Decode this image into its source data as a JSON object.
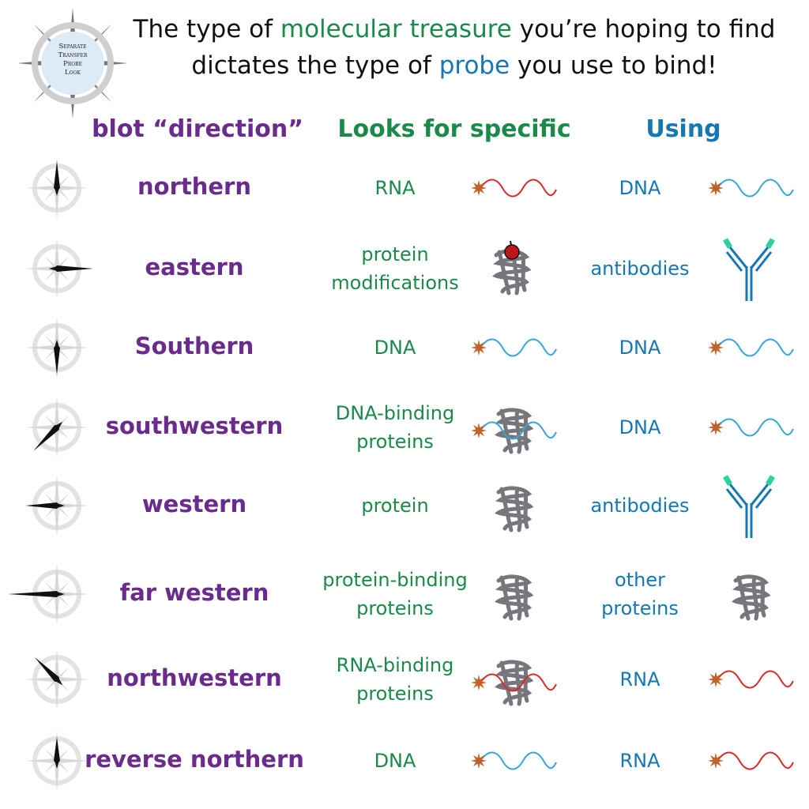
{
  "logo": {
    "lines": [
      "Separate",
      "Transfer",
      "Probe",
      "Look"
    ]
  },
  "title": {
    "line1_a": "The type of ",
    "line1_b": "molecular treasure",
    "line1_c": " you’re hoping to find",
    "line2_a": "dictates the type of ",
    "line2_b": "probe",
    "line2_c": " you use to bind!"
  },
  "headers": {
    "direction": "blot “direction”",
    "target": "Looks for specific",
    "probe": "Using"
  },
  "rows": [
    {
      "blot": "northern",
      "target": [
        "RNA"
      ],
      "probe": [
        "DNA"
      ]
    },
    {
      "blot": "eastern",
      "target": [
        "protein",
        "modifications"
      ],
      "probe": [
        "antibodies"
      ]
    },
    {
      "blot": "Southern",
      "target": [
        "DNA"
      ],
      "probe": [
        "DNA"
      ]
    },
    {
      "blot": "southwestern",
      "target": [
        "DNA-binding",
        "proteins"
      ],
      "probe": [
        "DNA"
      ]
    },
    {
      "blot": "western",
      "target": [
        "protein"
      ],
      "probe": [
        "antibodies"
      ]
    },
    {
      "blot": "far western",
      "target": [
        "protein-binding",
        "proteins"
      ],
      "probe": [
        "other",
        "proteins"
      ]
    },
    {
      "blot": "northwestern",
      "target": [
        "RNA-binding",
        "proteins"
      ],
      "probe": [
        "RNA"
      ]
    },
    {
      "blot": "reverse northern",
      "target": [
        "DNA"
      ],
      "probe": [
        "RNA"
      ]
    }
  ],
  "colors": {
    "purple": "#6a2c8c",
    "green": "#1a8a4a",
    "blue": "#1577b4",
    "rna": "#d92b2b",
    "dna": "#36a6d9",
    "star": "#c0622a",
    "protein": "#77767c",
    "antibody_tip": "#2fd0a0"
  }
}
